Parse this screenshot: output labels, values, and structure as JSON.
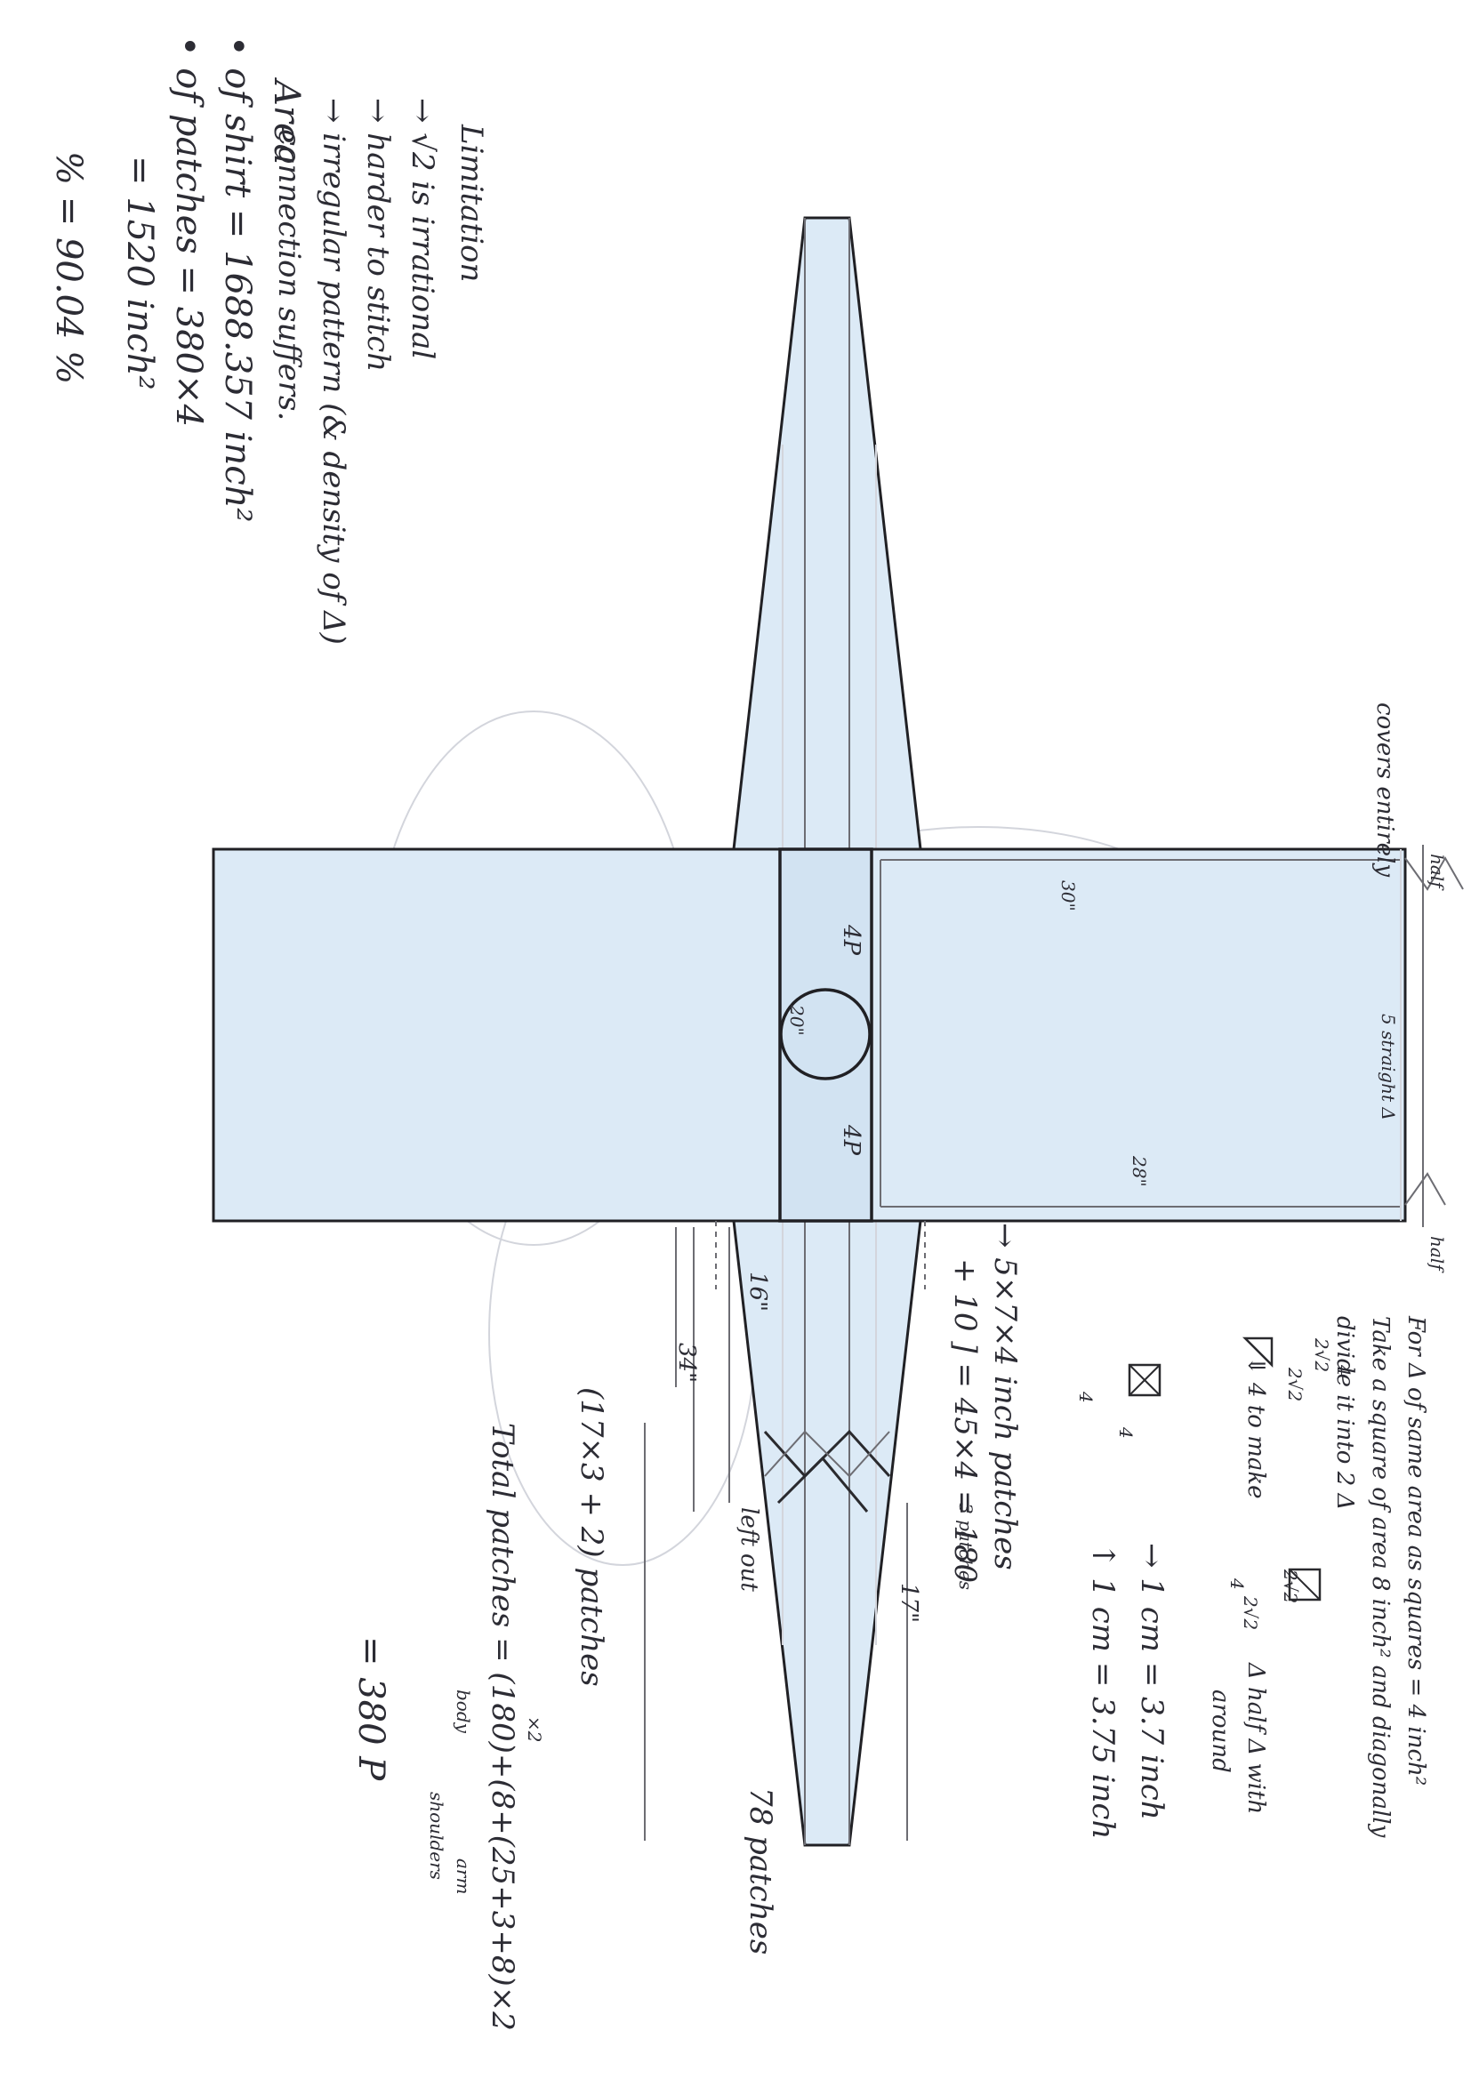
{
  "colors": {
    "fabric": "#dceaf6",
    "ink": "#2a2a2e",
    "pencil": "#6d6d73",
    "paper": "#ffffff"
  },
  "notes": {
    "area": {
      "heading": "Area",
      "shirt": "• of shirt = 1688.357 inch²",
      "patches": "• of patches = 380×4",
      "patches_eq": "= 1520 inch²",
      "percent": "% = 90.04 %"
    },
    "limitation": {
      "heading": "Limitation",
      "l1": "→ √2 is irrational",
      "l2": "→ harder to stitch",
      "l3": "→ irregular pattern (& density of Δ)",
      "l4": "connection suffers."
    },
    "right": {
      "r1": "For Δ of same area as squares = 4 inch²",
      "r2": "Take a square of area 8 inch² and diagonally",
      "r3": "divide it into 2 Δ",
      "to_make": "⇓ 4 to make",
      "half_tri": "Δ half Δ with",
      "around": "around",
      "cm1": "→ 1 cm = 3.7 inch",
      "cm2": "↑ 1 cm = 3.75 inch",
      "lbl_4a": "4",
      "lbl_2r2a": "2√2",
      "lbl_2r2b": "2√2",
      "lbl_4b": "4",
      "lbl_4c": "4",
      "lbl_2r2c": "2√2",
      "lbl_2r2d": "2√2",
      "lbl_4d": "4"
    },
    "body": {
      "covers": "covers entirely",
      "half_top": "half",
      "half_bottom": "half",
      "dim_30": "30\"",
      "dim_20": "20\"",
      "dim_28": "28\"",
      "five_straight": "5 straight Δ",
      "p4_top": "4P",
      "p4_bottom": "4P"
    },
    "calc": {
      "line1": "→ 5×7×4 inch patches",
      "line2": "+ 10 ] = 45×4 = 180",
      "three_patches": "3 patches",
      "left_out": "left out",
      "seventeen": "17\"",
      "sixteen": "16\"",
      "thirtyfour": "34\"",
      "seventy_eight": "78 patches",
      "arm_patches": "(17×3 + 2) patches",
      "total": "Total patches = (180)+(8+(25+3+8)×2",
      "x2": "×2",
      "body_lbl": "body",
      "shoulders": "shoulders",
      "arm": "arm",
      "result": "= 380 P"
    }
  }
}
